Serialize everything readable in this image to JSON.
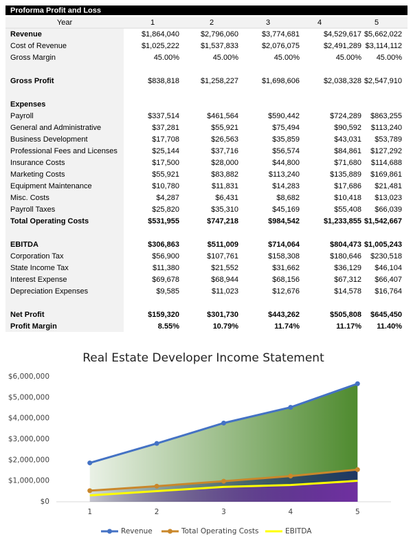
{
  "table": {
    "title": "Proforma Profit and Loss",
    "header": [
      "Year",
      "1",
      "2",
      "3",
      "4",
      "5"
    ],
    "sections": [
      [
        [
          "Revenue",
          "$1,864,040",
          "$2,796,060",
          "$3,774,681",
          "$4,529,617",
          "$5,662,022"
        ],
        [
          "Cost of Revenue",
          "$1,025,222",
          "$1,537,833",
          "$2,076,075",
          "$2,491,289",
          "$3,114,112"
        ],
        [
          "Gross Margin",
          "45.00%",
          "45.00%",
          "45.00%",
          "45.00%",
          "45.00%"
        ]
      ],
      [
        [
          "Gross Profit",
          "$838,818",
          "$1,258,227",
          "$1,698,606",
          "$2,038,328",
          "$2,547,910"
        ]
      ],
      [
        [
          "Expenses"
        ],
        [
          "Payroll",
          "$337,514",
          "$461,564",
          "$590,442",
          "$724,289",
          "$863,255"
        ],
        [
          "General and Administrative",
          "$37,281",
          "$55,921",
          "$75,494",
          "$90,592",
          "$113,240"
        ],
        [
          "Business Development",
          "$17,708",
          "$26,563",
          "$35,859",
          "$43,031",
          "$53,789"
        ],
        [
          "Professional Fees and Licenses",
          "$25,144",
          "$37,716",
          "$56,574",
          "$84,861",
          "$127,292"
        ],
        [
          "Insurance Costs",
          "$17,500",
          "$28,000",
          "$44,800",
          "$71,680",
          "$114,688"
        ],
        [
          "Marketing Costs",
          "$55,921",
          "$83,882",
          "$113,240",
          "$135,889",
          "$169,861"
        ],
        [
          "Equipment Maintenance",
          "$10,780",
          "$11,831",
          "$14,283",
          "$17,686",
          "$21,481"
        ],
        [
          "Misc. Costs",
          "$4,287",
          "$6,431",
          "$8,682",
          "$10,418",
          "$13,023"
        ],
        [
          "Payroll Taxes",
          "$25,820",
          "$35,310",
          "$45,169",
          "$55,408",
          "$66,039"
        ],
        [
          "Total Operating Costs",
          "$531,955",
          "$747,218",
          "$984,542",
          "$1,233,855",
          "$1,542,667"
        ]
      ],
      [
        [
          "EBITDA",
          "$306,863",
          "$511,009",
          "$714,064",
          "$804,473",
          "$1,005,243"
        ],
        [
          "Corporation Tax",
          "$56,900",
          "$107,761",
          "$158,308",
          "$180,646",
          "$230,518"
        ],
        [
          "State Income Tax",
          "$11,380",
          "$21,552",
          "$31,662",
          "$36,129",
          "$46,104"
        ],
        [
          "Interest Expense",
          "$69,678",
          "$68,944",
          "$68,156",
          "$67,312",
          "$66,407"
        ],
        [
          "Depreciation Expenses",
          "$9,585",
          "$11,023",
          "$12,676",
          "$14,578",
          "$16,764"
        ]
      ],
      [
        [
          "Net Profit",
          "$159,320",
          "$301,730",
          "$443,262",
          "$505,808",
          "$645,450"
        ],
        [
          "Profit Margin",
          "8.55%",
          "10.79%",
          "11.74%",
          "11.17%",
          "11.40%"
        ]
      ]
    ]
  },
  "chart_data": {
    "type": "area",
    "title": "Real Estate Developer Income Statement",
    "categories": [
      "1",
      "2",
      "3",
      "4",
      "5"
    ],
    "series": [
      {
        "name": "Revenue",
        "color": "#4472c4",
        "area_color": "#4e8a2e",
        "markers": true,
        "values": [
          1864040,
          2796060,
          3774681,
          4529617,
          5662022
        ]
      },
      {
        "name": "Total Operating Costs",
        "color": "#c9872b",
        "area_color": "#1f3864",
        "markers": true,
        "values": [
          531955,
          747218,
          984542,
          1233855,
          1542667
        ]
      },
      {
        "name": "EBITDA",
        "color": "#ffff00",
        "area_color": "#7030a0",
        "markers": false,
        "values": [
          306863,
          511009,
          714064,
          804473,
          1005243
        ]
      }
    ],
    "ylim": [
      0,
      6000000
    ],
    "yticks": [
      {
        "value": 0,
        "label": "$0"
      },
      {
        "value": 1000000,
        "label": "$1,000,000"
      },
      {
        "value": 2000000,
        "label": "$2,000,000"
      },
      {
        "value": 3000000,
        "label": "$3,000,000"
      },
      {
        "value": 4000000,
        "label": "$4,000,000"
      },
      {
        "value": 5000000,
        "label": "$5,000,000"
      },
      {
        "value": 6000000,
        "label": "$6,000,000"
      }
    ],
    "grid": false,
    "legend": "bottom"
  }
}
